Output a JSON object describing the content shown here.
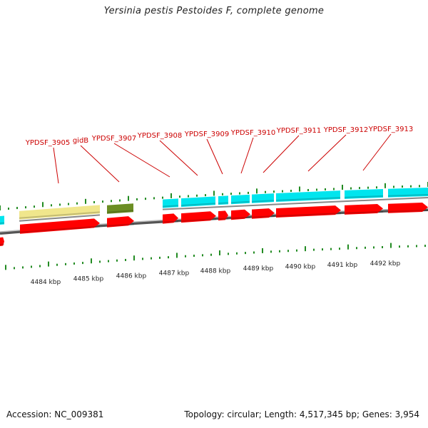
{
  "title": "Yersinia pestis Pestoides F, complete genome",
  "accession": "Accession: NC_009381",
  "summary": "Topology: circular; Length: 4,517,345 bp; Genes: 3,954",
  "colors": {
    "cds": "#ff0000",
    "gene": "#00e5ee",
    "misc_a": "#f0e68c",
    "misc_b": "#6b8e23",
    "tick": "#228b22",
    "backbone": "#808080",
    "label": "#cc0000"
  },
  "kbp_labels": [
    "4484 kbp",
    "4485 kbp",
    "4486 kbp",
    "4487 kbp",
    "4488 kbp",
    "4489 kbp",
    "4490 kbp",
    "4491 kbp",
    "4492 kbp"
  ],
  "gene_labels": [
    "YPDSF_3905",
    "gidB",
    "YPDSF_3907",
    "YPDSF_3908",
    "YPDSF_3909",
    "YPDSF_3910",
    "YPDSF_3911",
    "YPDSF_3912",
    "YPDSF_3913"
  ]
}
